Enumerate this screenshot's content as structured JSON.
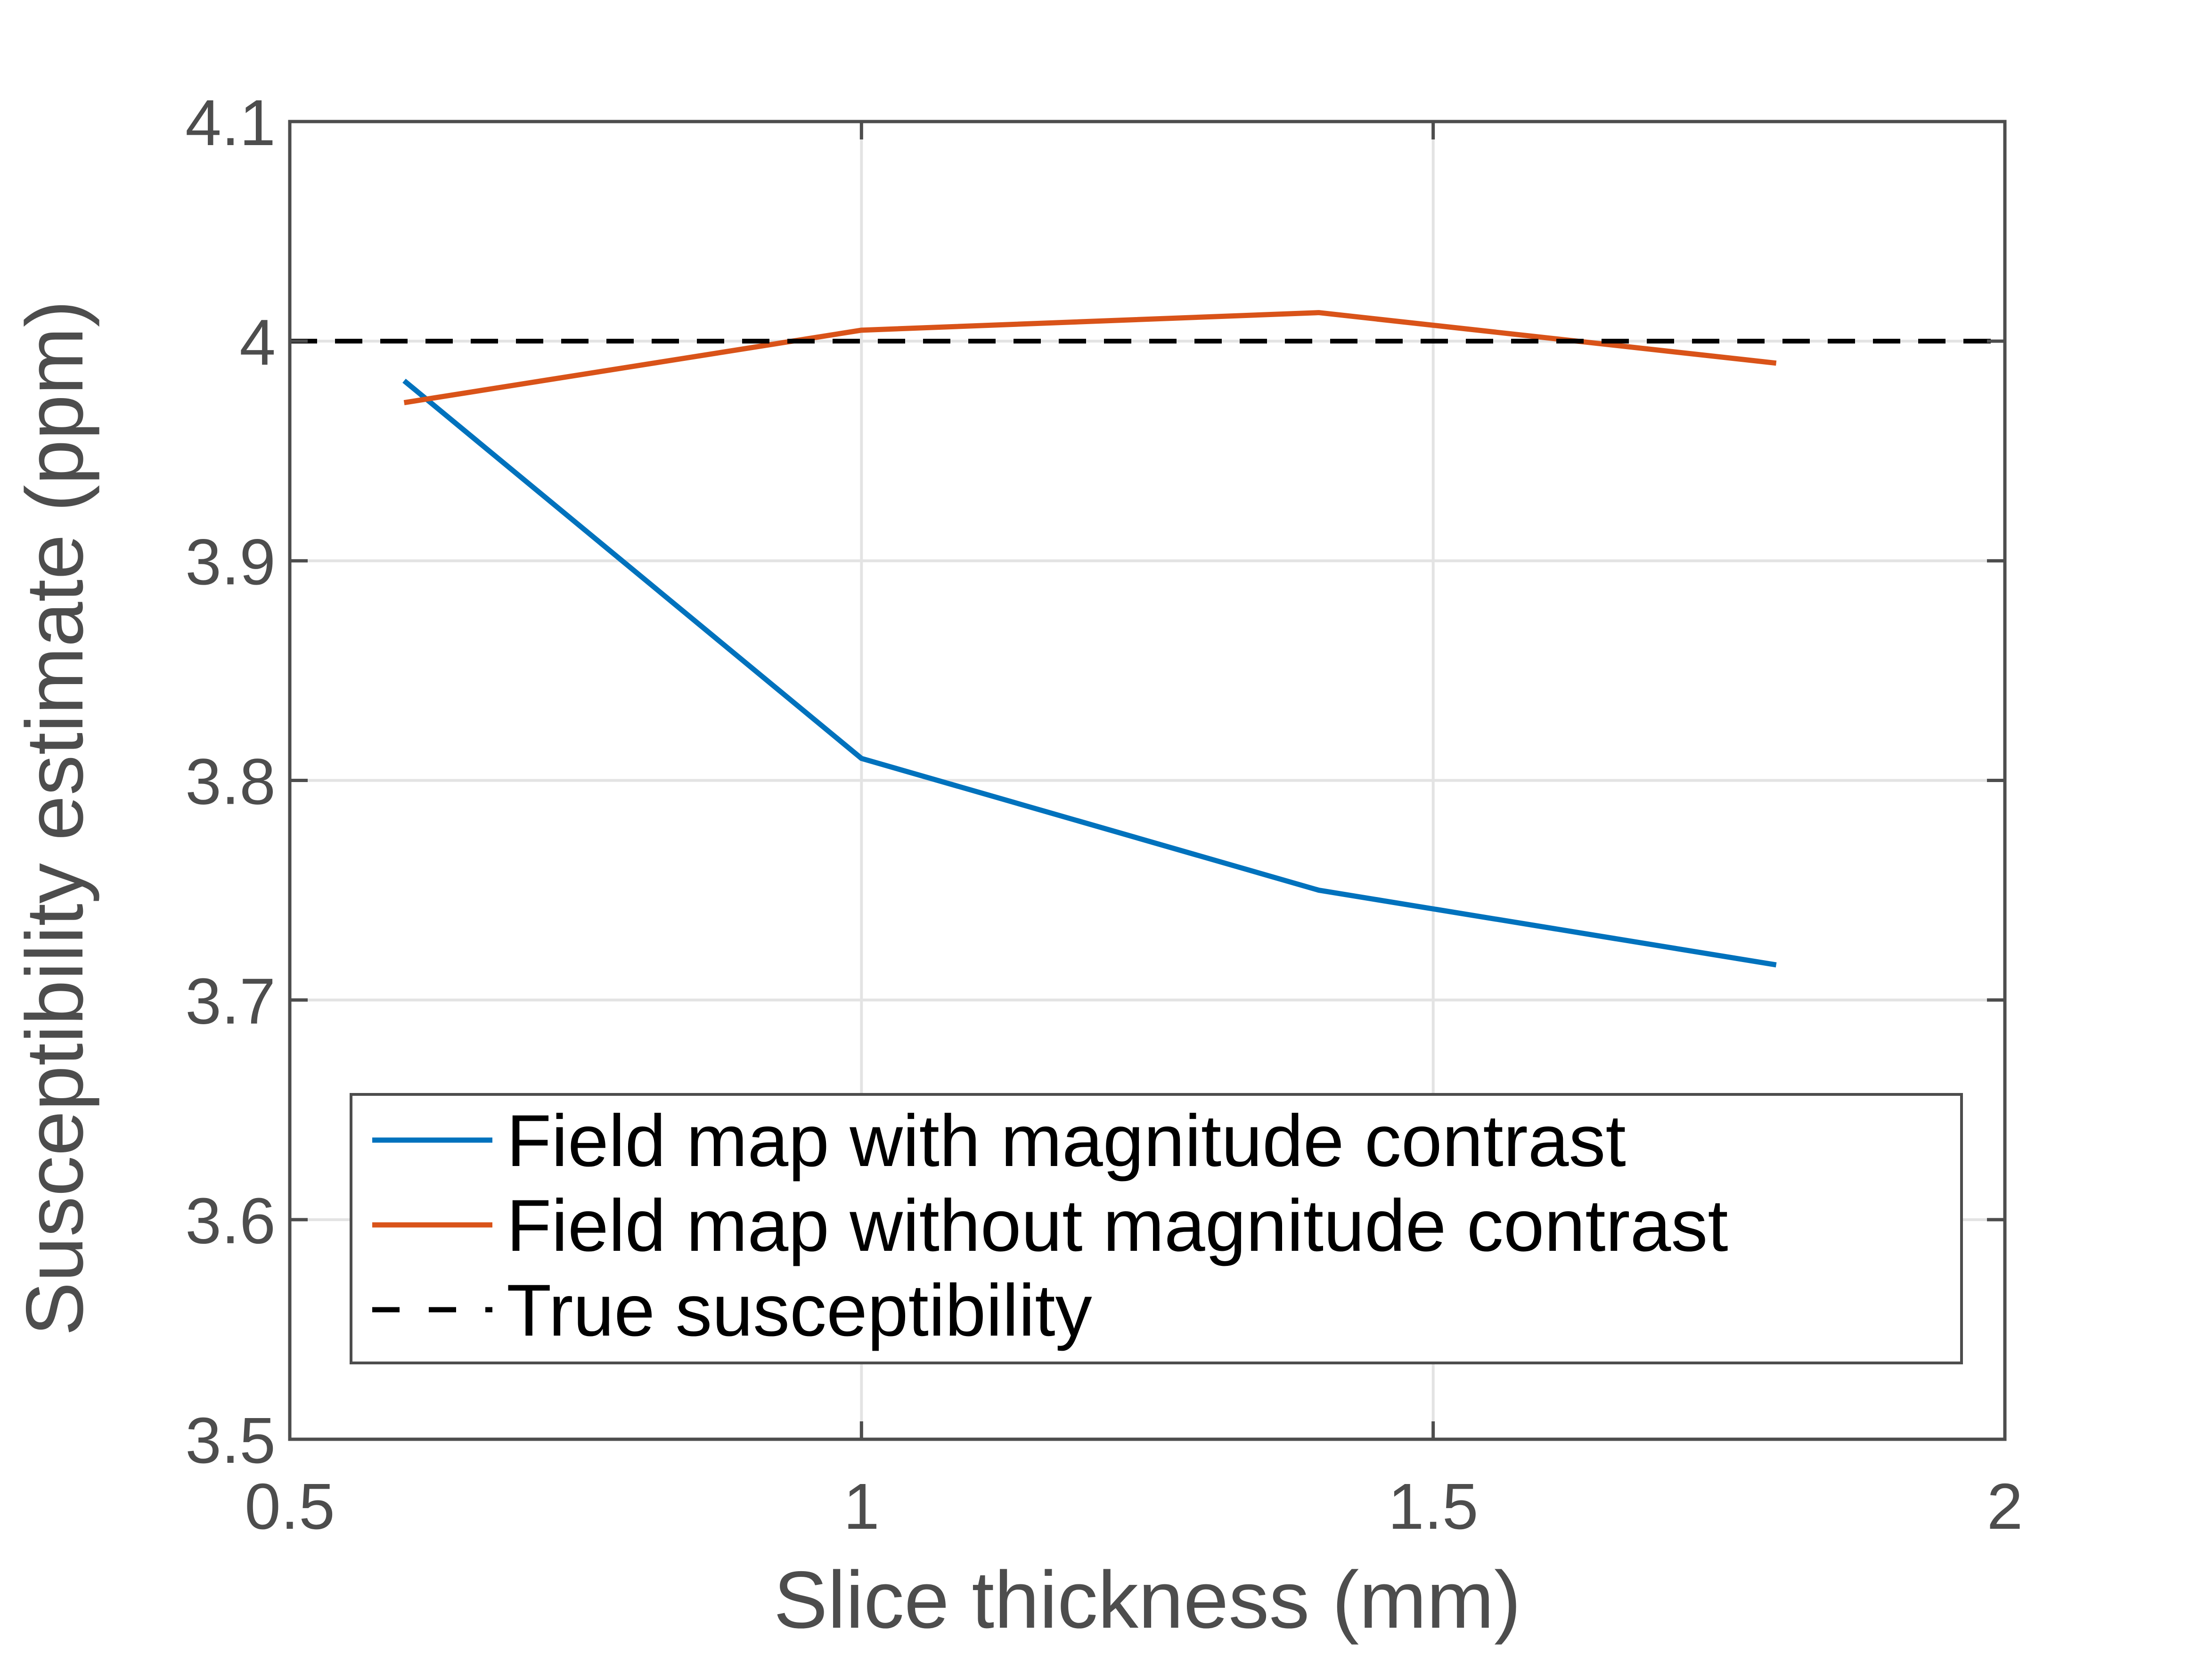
{
  "chart_data": {
    "type": "line",
    "title": "",
    "xlabel": "Slice thickness (mm)",
    "ylabel": "Susceptibility estimate (ppm)",
    "xlim": [
      0.5,
      2
    ],
    "ylim": [
      3.5,
      4.1
    ],
    "xticks": [
      0.5,
      1,
      1.5,
      2
    ],
    "xtick_labels": [
      "0.5",
      "1",
      "1.5",
      "2"
    ],
    "yticks": [
      3.5,
      3.6,
      3.7,
      3.8,
      3.9,
      4,
      4.1
    ],
    "ytick_labels": [
      "3.5",
      "3.6",
      "3.7",
      "3.8",
      "3.9",
      "4",
      "4.1"
    ],
    "grid": true,
    "legend_position": "bottom-right",
    "series": [
      {
        "name": "Field map with magnitude contrast",
        "color": "#0072bd",
        "dash": "solid",
        "x": [
          0.6,
          1.0,
          1.4,
          1.8
        ],
        "y": [
          3.982,
          3.81,
          3.75,
          3.716
        ]
      },
      {
        "name": "Field map without magnitude contrast",
        "color": "#d95319",
        "dash": "solid",
        "x": [
          0.6,
          1.0,
          1.4,
          1.8
        ],
        "y": [
          3.972,
          4.005,
          4.013,
          3.99
        ]
      },
      {
        "name": "True susceptibility",
        "color": "#000000",
        "dash": "dashed",
        "x": [
          0.5,
          2.0
        ],
        "y": [
          4.0,
          4.0
        ]
      }
    ]
  }
}
